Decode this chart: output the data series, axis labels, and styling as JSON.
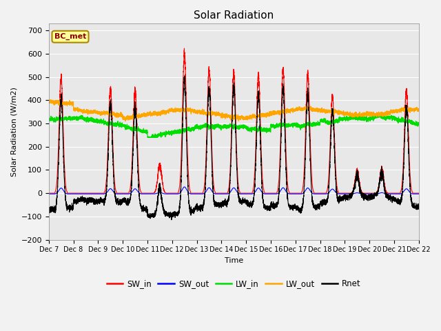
{
  "title": "Solar Radiation",
  "ylabel": "Solar Radiation (W/m2)",
  "xlabel": "Time",
  "ylim": [
    -200,
    730
  ],
  "yticks": [
    -200,
    -100,
    0,
    100,
    200,
    300,
    400,
    500,
    600,
    700
  ],
  "label_text": "BC_met",
  "label_bg": "#FFFF99",
  "label_border": "#CCAA00",
  "plot_bg": "#E8E8E8",
  "fig_bg": "#F2F2F2",
  "series_colors": {
    "SW_in": "#FF0000",
    "SW_out": "#0000FF",
    "LW_in": "#00DD00",
    "LW_out": "#FFA500",
    "Rnet": "#000000"
  },
  "legend_labels": [
    "SW_in",
    "SW_out",
    "LW_in",
    "LW_out",
    "Rnet"
  ],
  "legend_colors": [
    "#FF0000",
    "#0000FF",
    "#00DD00",
    "#FFA500",
    "#000000"
  ],
  "n_days": 15,
  "pts_per_day": 480,
  "start_day": 7,
  "sw_in_peaks": [
    500,
    0,
    450,
    440,
    120,
    600,
    530,
    520,
    505,
    530,
    510,
    415,
    90,
    100,
    440
  ],
  "line_width": 0.8
}
